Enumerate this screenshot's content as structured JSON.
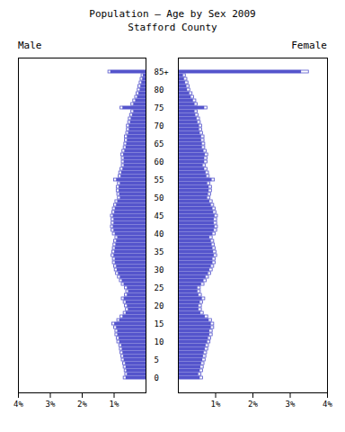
{
  "chart_data": [
    {
      "type": "bar",
      "orientation": "horizontal",
      "title": "Population — Age by Sex 2009",
      "subtitle": "Stafford County",
      "categories": [
        "0",
        null,
        null,
        null,
        null,
        "5",
        null,
        null,
        null,
        null,
        "10",
        null,
        null,
        null,
        null,
        "15",
        null,
        null,
        null,
        null,
        "20",
        null,
        null,
        null,
        null,
        "25",
        null,
        null,
        null,
        null,
        "30",
        null,
        null,
        null,
        null,
        "35",
        null,
        null,
        null,
        null,
        "40",
        null,
        null,
        null,
        null,
        "45",
        null,
        null,
        null,
        null,
        "50",
        null,
        null,
        null,
        null,
        "55",
        null,
        null,
        null,
        null,
        "60",
        null,
        null,
        null,
        null,
        "65",
        null,
        null,
        null,
        null,
        "70",
        null,
        null,
        null,
        null,
        "75",
        null,
        null,
        null,
        null,
        "80",
        null,
        null,
        null,
        null,
        "85+"
      ],
      "series": [
        {
          "name": "Male",
          "color": "#5555cc",
          "values": [
            0.62,
            0.58,
            0.6,
            0.62,
            0.64,
            0.68,
            0.7,
            0.72,
            0.74,
            0.76,
            0.82,
            0.84,
            0.88,
            0.88,
            0.92,
            0.98,
            0.82,
            0.72,
            0.62,
            0.55,
            0.58,
            0.62,
            0.68,
            0.58,
            0.54,
            0.58,
            0.68,
            0.74,
            0.8,
            0.86,
            0.9,
            0.92,
            0.96,
            0.96,
            1.0,
            0.98,
            0.96,
            0.94,
            0.92,
            0.88,
            0.96,
            1.0,
            1.02,
            1.0,
            1.0,
            1.02,
            0.98,
            0.96,
            0.92,
            0.88,
            0.8,
            0.82,
            0.84,
            0.84,
            0.8,
            0.92,
            0.78,
            0.76,
            0.72,
            0.68,
            0.68,
            0.68,
            0.7,
            0.66,
            0.62,
            0.6,
            0.58,
            0.58,
            0.54,
            0.52,
            0.52,
            0.48,
            0.46,
            0.42,
            0.38,
            0.72,
            0.38,
            0.32,
            0.26,
            0.22,
            0.18,
            0.16,
            0.13,
            0.1,
            0.08,
            1.1
          ],
          "outline": [
            0.7,
            0.65,
            0.67,
            0.7,
            0.72,
            0.76,
            0.78,
            0.8,
            0.82,
            0.84,
            0.9,
            0.92,
            0.96,
            0.96,
            1.0,
            1.06,
            0.9,
            0.8,
            0.7,
            0.63,
            0.66,
            0.7,
            0.76,
            0.66,
            0.62,
            0.66,
            0.76,
            0.82,
            0.88,
            0.94,
            0.98,
            1.0,
            1.04,
            1.04,
            1.08,
            1.06,
            1.04,
            1.02,
            1.0,
            0.96,
            1.04,
            1.08,
            1.1,
            1.08,
            1.08,
            1.1,
            1.06,
            1.04,
            1.0,
            0.96,
            0.88,
            0.9,
            0.92,
            0.92,
            0.88,
            1.0,
            0.86,
            0.84,
            0.8,
            0.76,
            0.76,
            0.76,
            0.78,
            0.74,
            0.7,
            0.68,
            0.66,
            0.66,
            0.62,
            0.6,
            0.6,
            0.56,
            0.54,
            0.5,
            0.46,
            0.8,
            0.46,
            0.4,
            0.34,
            0.3,
            0.26,
            0.24,
            0.2,
            0.17,
            0.14,
            1.18
          ]
        }
      ],
      "xlim": [
        4,
        0
      ],
      "xticks": [
        {
          "value": 4,
          "label": "4%"
        },
        {
          "value": 3,
          "label": "3%"
        },
        {
          "value": 2,
          "label": "2%"
        },
        {
          "value": 1,
          "label": "1%"
        }
      ],
      "grid": false
    },
    {
      "type": "bar",
      "orientation": "horizontal",
      "categories": [
        "0",
        null,
        null,
        null,
        null,
        "5",
        null,
        null,
        null,
        null,
        "10",
        null,
        null,
        null,
        null,
        "15",
        null,
        null,
        null,
        null,
        "20",
        null,
        null,
        null,
        null,
        "25",
        null,
        null,
        null,
        null,
        "30",
        null,
        null,
        null,
        null,
        "35",
        null,
        null,
        null,
        null,
        "40",
        null,
        null,
        null,
        null,
        "45",
        null,
        null,
        null,
        null,
        "50",
        null,
        null,
        null,
        null,
        "55",
        null,
        null,
        null,
        null,
        "60",
        null,
        null,
        null,
        null,
        "65",
        null,
        null,
        null,
        null,
        "70",
        null,
        null,
        null,
        null,
        "75",
        null,
        null,
        null,
        null,
        "80",
        null,
        null,
        null,
        null,
        "85+"
      ],
      "series": [
        {
          "name": "Female",
          "color": "#5555cc",
          "values": [
            0.58,
            0.54,
            0.58,
            0.6,
            0.62,
            0.65,
            0.67,
            0.69,
            0.72,
            0.74,
            0.78,
            0.8,
            0.84,
            0.84,
            0.88,
            0.88,
            0.82,
            0.72,
            0.6,
            0.55,
            0.55,
            0.58,
            0.64,
            0.55,
            0.52,
            0.52,
            0.62,
            0.68,
            0.74,
            0.8,
            0.84,
            0.88,
            0.92,
            0.92,
            0.96,
            0.94,
            0.92,
            0.9,
            0.88,
            0.84,
            0.92,
            0.96,
            0.98,
            0.96,
            0.96,
            0.98,
            0.94,
            0.92,
            0.88,
            0.84,
            0.78,
            0.8,
            0.82,
            0.82,
            0.78,
            0.9,
            0.76,
            0.74,
            0.7,
            0.66,
            0.7,
            0.7,
            0.72,
            0.68,
            0.64,
            0.64,
            0.62,
            0.62,
            0.58,
            0.56,
            0.56,
            0.52,
            0.5,
            0.46,
            0.44,
            0.7,
            0.44,
            0.4,
            0.34,
            0.3,
            0.24,
            0.22,
            0.19,
            0.16,
            0.13,
            3.3
          ],
          "outline": [
            0.66,
            0.62,
            0.66,
            0.68,
            0.7,
            0.73,
            0.75,
            0.77,
            0.8,
            0.82,
            0.86,
            0.88,
            0.92,
            0.92,
            0.96,
            0.96,
            0.9,
            0.8,
            0.68,
            0.63,
            0.63,
            0.66,
            0.72,
            0.63,
            0.6,
            0.6,
            0.7,
            0.76,
            0.82,
            0.88,
            0.92,
            0.96,
            1.0,
            1.0,
            1.04,
            1.02,
            1.0,
            0.98,
            0.96,
            0.92,
            1.0,
            1.04,
            1.06,
            1.04,
            1.04,
            1.06,
            1.02,
            1.0,
            0.96,
            0.92,
            0.86,
            0.88,
            0.9,
            0.9,
            0.86,
            0.98,
            0.84,
            0.82,
            0.78,
            0.74,
            0.78,
            0.78,
            0.8,
            0.76,
            0.72,
            0.72,
            0.7,
            0.7,
            0.66,
            0.64,
            0.64,
            0.6,
            0.58,
            0.54,
            0.52,
            0.78,
            0.52,
            0.48,
            0.42,
            0.38,
            0.32,
            0.3,
            0.27,
            0.24,
            0.2,
            3.5
          ]
        }
      ],
      "xlim": [
        0,
        4
      ],
      "xticks": [
        {
          "value": 1,
          "label": "1%"
        },
        {
          "value": 2,
          "label": "2%"
        },
        {
          "value": 3,
          "label": "3%"
        },
        {
          "value": 4,
          "label": "4%"
        }
      ],
      "grid": false,
      "tick_labels": "x"
    }
  ]
}
